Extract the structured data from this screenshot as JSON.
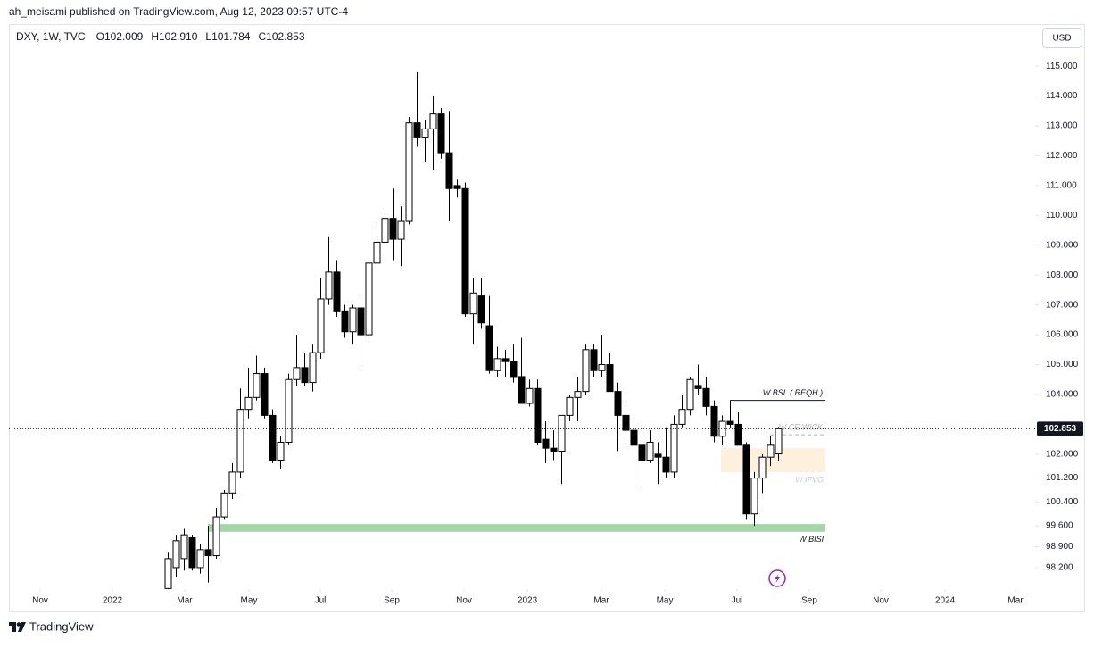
{
  "header": {
    "published": "ah_meisami published on TradingView.com, Aug 12, 2023 09:57 UTC-4",
    "currency": "USD",
    "brand": "TradingView"
  },
  "chart_data": {
    "type": "candlestick",
    "symbol": "DXY, 1W, TVC",
    "ohlc_prefixes": [
      "O",
      "H",
      "L",
      "C"
    ],
    "ohlc_labels": [
      "102.009",
      "102.910",
      "101.784",
      "102.853"
    ],
    "up_color": "#ffffff",
    "down_color": "#000000",
    "outline_color": "#000000",
    "open": [
      97.5,
      98.2,
      98.5,
      99.2,
      98.2,
      98.8,
      98.6,
      99.9,
      100.7,
      101.4,
      103.5,
      103.9,
      104.7,
      103.3,
      101.8,
      102.4,
      104.5,
      104.9,
      104.4,
      105.4,
      107.2,
      108.1,
      106.8,
      106.1,
      106.9,
      106.0,
      108.4,
      109.1,
      109.9,
      109.2,
      109.8,
      113.1,
      112.6,
      112.9,
      113.4,
      112.1,
      111.0,
      110.9,
      106.7,
      107.3,
      106.3,
      104.8,
      105.2,
      105.1,
      104.6,
      103.7,
      104.2,
      102.5,
      102.2,
      102.1,
      103.3,
      103.9,
      104.1,
      105.5,
      104.8,
      105.0,
      104.1,
      103.3,
      102.8,
      102.3,
      101.8,
      102.0,
      101.9,
      101.4,
      103.0,
      103.5,
      104.3,
      104.2,
      103.6,
      102.6,
      103.1,
      103.0,
      102.3,
      100.0,
      101.2,
      101.9,
      102.009
    ],
    "high": [
      98.7,
      99.3,
      99.5,
      99.3,
      99.0,
      99.6,
      100.2,
      100.8,
      101.7,
      104.2,
      104.9,
      105.3,
      104.9,
      103.5,
      102.6,
      104.7,
      106.0,
      105.4,
      105.7,
      107.9,
      109.3,
      108.5,
      107.0,
      107.0,
      107.3,
      108.5,
      109.6,
      110.2,
      110.9,
      110.3,
      113.3,
      114.8,
      113.2,
      114.0,
      113.6,
      113.5,
      111.2,
      111.1,
      107.9,
      107.9,
      107.3,
      105.6,
      105.5,
      105.7,
      105.9,
      104.5,
      104.5,
      103.1,
      102.8,
      103.3,
      104.0,
      104.6,
      105.7,
      105.7,
      106.0,
      105.4,
      104.4,
      103.6,
      103.1,
      103.0,
      102.8,
      102.4,
      102.9,
      103.3,
      104.0,
      104.6,
      105.0,
      104.6,
      103.8,
      103.3,
      103.8,
      103.4,
      102.4,
      101.4,
      102.0,
      102.6,
      102.91
    ],
    "low": [
      97.4,
      97.9,
      98.1,
      98.1,
      98.0,
      97.7,
      98.5,
      99.8,
      100.5,
      101.2,
      103.2,
      103.8,
      103.2,
      101.7,
      101.5,
      102.3,
      104.3,
      104.3,
      104.1,
      105.2,
      107.0,
      106.6,
      105.9,
      105.7,
      105.0,
      105.8,
      108.2,
      108.8,
      108.5,
      108.3,
      109.7,
      112.3,
      111.8,
      111.5,
      111.9,
      109.8,
      110.6,
      106.6,
      105.7,
      106.2,
      104.7,
      104.6,
      104.6,
      104.4,
      103.7,
      103.6,
      102.3,
      101.7,
      101.8,
      101.0,
      103.1,
      103.1,
      104.0,
      104.6,
      104.6,
      104.1,
      102.1,
      102.3,
      102.2,
      100.9,
      101.7,
      101.0,
      101.2,
      101.2,
      102.9,
      103.3,
      104.0,
      103.3,
      102.4,
      102.3,
      102.9,
      102.3,
      99.8,
      99.6,
      100.7,
      101.6,
      101.784
    ],
    "close": [
      98.5,
      99.1,
      99.3,
      98.2,
      98.8,
      98.6,
      99.9,
      100.7,
      101.4,
      103.5,
      103.9,
      104.7,
      103.3,
      101.8,
      102.4,
      104.5,
      104.9,
      104.4,
      105.4,
      107.2,
      108.1,
      106.8,
      106.1,
      106.9,
      106.0,
      108.4,
      109.1,
      109.9,
      109.2,
      109.8,
      113.1,
      112.6,
      112.9,
      113.4,
      112.1,
      110.9,
      110.9,
      106.7,
      107.4,
      106.4,
      104.8,
      105.2,
      105.1,
      104.6,
      103.7,
      104.2,
      102.4,
      102.2,
      102.1,
      103.3,
      103.9,
      104.1,
      105.5,
      104.8,
      105.0,
      104.1,
      103.3,
      102.8,
      102.3,
      101.8,
      102.4,
      101.9,
      101.4,
      103.0,
      103.5,
      104.5,
      104.2,
      103.6,
      102.6,
      103.1,
      103.0,
      102.3,
      100.0,
      101.2,
      101.9,
      102.3,
      102.853
    ],
    "xlim": [
      -19.78,
      108
    ],
    "xticks": [
      {
        "value": -15.89,
        "label": "Nov"
      },
      {
        "value": -6.89,
        "label": "2022"
      },
      {
        "value": 2.11,
        "label": "Mar"
      },
      {
        "value": 10.11,
        "label": "May"
      },
      {
        "value": 19,
        "label": "Jul"
      },
      {
        "value": 27.89,
        "label": "Sep"
      },
      {
        "value": 36.89,
        "label": "Nov"
      },
      {
        "value": 44.78,
        "label": "2023"
      },
      {
        "value": 54,
        "label": "Mar"
      },
      {
        "value": 61.89,
        "label": "May"
      },
      {
        "value": 70.89,
        "label": "Jul"
      },
      {
        "value": 79.89,
        "label": "Sep"
      },
      {
        "value": 88.78,
        "label": "Nov"
      },
      {
        "value": 96.78,
        "label": "2024"
      },
      {
        "value": 105.56,
        "label": "Mar"
      }
    ],
    "ylim": [
      97.48,
      116.38
    ],
    "yticks": [
      {
        "value": 98.2,
        "label": "98.200"
      },
      {
        "value": 98.9,
        "label": "98.900"
      },
      {
        "value": 99.6,
        "label": "99.600"
      },
      {
        "value": 100.4,
        "label": "100.400"
      },
      {
        "value": 101.2,
        "label": "101.200"
      },
      {
        "value": 102,
        "label": "102.000"
      },
      {
        "value": 104,
        "label": "104.000"
      },
      {
        "value": 105,
        "label": "105.000"
      },
      {
        "value": 106,
        "label": "106.000"
      },
      {
        "value": 107,
        "label": "107.000"
      },
      {
        "value": 108,
        "label": "108.000"
      },
      {
        "value": 109,
        "label": "109.000"
      },
      {
        "value": 110,
        "label": "110.000"
      },
      {
        "value": 111,
        "label": "111.000"
      },
      {
        "value": 112,
        "label": "112.000"
      },
      {
        "value": 113,
        "label": "113.000"
      },
      {
        "value": 114,
        "label": "114.000"
      },
      {
        "value": 115,
        "label": "115.000"
      }
    ],
    "zones": [
      {
        "label": "W BISI",
        "x": [
          5,
          81.9
        ],
        "y": [
          99.4,
          99.66
        ],
        "color": "#a5d6a7",
        "label_color": "#131722"
      },
      {
        "label": "W IFVG",
        "x": [
          68.9,
          81.9
        ],
        "y": [
          101.4,
          102.2
        ],
        "color": "#fdf0dc",
        "label_color": "#c8cad0"
      }
    ],
    "levels": [
      {
        "label": "W BSL ( REQH )",
        "x": [
          70,
          81.9
        ],
        "y": 103.8,
        "dashed": false,
        "color": "#131722"
      },
      {
        "label": "W CE WICK",
        "x": [
          75,
          81.9
        ],
        "y": 102.65,
        "dashed": true,
        "color": "#b2b5be"
      }
    ]
  }
}
